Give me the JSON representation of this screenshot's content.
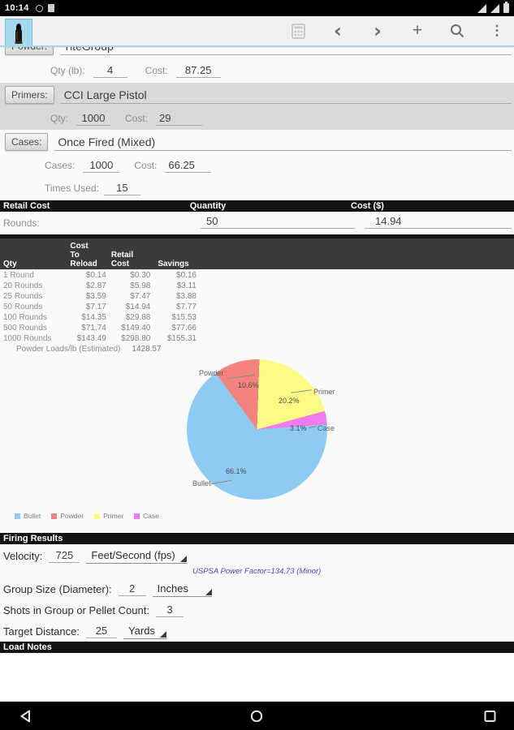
{
  "status_bar": {
    "time": "10:14",
    "icons": [
      "notification-circle-icon",
      "notification-chip-icon",
      "wifi-icon",
      "cellular-icon",
      "battery-icon"
    ]
  },
  "toolbar": {
    "app_icon": "cartridge-app-icon",
    "actions": [
      "calculator-icon",
      "previous-icon",
      "next-icon",
      "add-icon",
      "search-icon",
      "overflow-menu-icon"
    ],
    "prev_glyph": "‹",
    "next_glyph": "›",
    "add_glyph": "+",
    "overflow_glyph": "⋮"
  },
  "powder": {
    "button_label": "Powder:",
    "name": "TiteGroup",
    "qty_label": "Qty (lb):",
    "qty": "4",
    "cost_label": "Cost:",
    "cost": "87.25"
  },
  "primers": {
    "button_label": "Primers:",
    "name": "CCI Large Pistol",
    "qty_label": "Qty:",
    "qty": "1000",
    "cost_label": "Cost:",
    "cost": "29"
  },
  "cases": {
    "button_label": "Cases:",
    "name": "Once Fired (Mixed)",
    "cases_label": "Cases:",
    "qty": "1000",
    "cost_label": "Cost:",
    "cost": "66.25",
    "times_used_label": "Times Used:",
    "times_used": "15"
  },
  "retail": {
    "header": "Retail Cost",
    "col_quantity": "Quantity",
    "col_cost": "Cost ($)",
    "rounds_label": "Rounds:",
    "quantity": "50",
    "cost": "14.94"
  },
  "cost_table": {
    "headers": [
      "Qty",
      "Cost\nTo\nReload",
      "Retail\nCost",
      "Savings"
    ],
    "rows": [
      [
        "1 Round",
        "$0.14",
        "$0.30",
        "$0.16"
      ],
      [
        "20 Rounds",
        "$2.87",
        "$5.98",
        "$3.11"
      ],
      [
        "25 Rounds",
        "$3.59",
        "$7.47",
        "$3.88"
      ],
      [
        "50 Rounds",
        "$7.17",
        "$14.94",
        "$7.77"
      ],
      [
        "100 Rounds",
        "$14.35",
        "$29.88",
        "$15.53"
      ],
      [
        "500 Rounds",
        "$71.74",
        "$149.40",
        "$77.66"
      ],
      [
        "1000 Rounds",
        "$143.49",
        "$298.80",
        "$155.31"
      ]
    ]
  },
  "powder_loads": {
    "label": "Powder Loads/lb (Estimated)",
    "value": "1428.57"
  },
  "chart_data": {
    "type": "pie",
    "start_angle_deg": 2,
    "slices": [
      {
        "name": "Primer",
        "pct": 20.2,
        "pct_label": "20.2%",
        "color": "#fafa85"
      },
      {
        "name": "Case",
        "pct": 3.1,
        "pct_label": "3.1%",
        "color": "#f07bec"
      },
      {
        "name": "Bullet",
        "pct": 66.1,
        "pct_label": "66.1%",
        "color": "#8dcbf2"
      },
      {
        "name": "Powder",
        "pct": 10.6,
        "pct_label": "10.6%",
        "color": "#f4837d"
      }
    ],
    "legend": [
      {
        "label": "Bullet",
        "color": "#8dcbf2"
      },
      {
        "label": "Powder",
        "color": "#f4837d"
      },
      {
        "label": "Primer",
        "color": "#fafa85"
      },
      {
        "label": "Case",
        "color": "#f07bec"
      }
    ],
    "legend_position": "bottom-left"
  },
  "firing": {
    "header": "Firing Results",
    "velocity_label": "Velocity:",
    "velocity": "725",
    "velocity_unit": "Feet/Second (fps)",
    "power_factor": "USPSA Power Factor=134.73 (Minor)",
    "group_size_label": "Group Size (Diameter):",
    "group_size": "2",
    "group_size_unit": "Inches",
    "shots_label": "Shots in Group or Pellet Count:",
    "shots": "3",
    "target_distance_label": "Target Distance:",
    "target_distance": "25",
    "target_distance_unit": "Yards"
  },
  "load_notes": {
    "header": "Load Notes"
  },
  "nav_bar": {
    "icons": [
      "back-icon",
      "home-icon",
      "recents-icon"
    ]
  }
}
